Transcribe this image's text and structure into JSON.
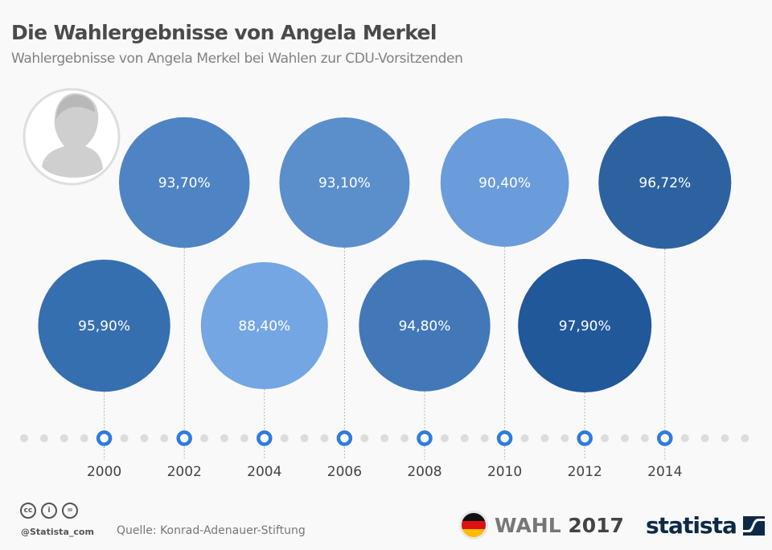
{
  "header": {
    "title": "Die Wahlergebnisse von Angela Merkel",
    "subtitle": "Wahlergebnisse von Angela Merkel bei Wahlen zur CDU-Vorsitzenden"
  },
  "portrait": {
    "icon": "angela-merkel-portrait",
    "color": "#cfcfcf"
  },
  "colors": {
    "ring": "#2e7be0",
    "dot": "#dcdcdc",
    "connector": "#b5b5b5"
  },
  "chart_data": {
    "type": "bubble-timeline",
    "title": "Die Wahlergebnisse von Angela Merkel",
    "subtitle": "Wahlergebnisse von Angela Merkel bei Wahlen zur CDU-Vorsitzenden",
    "xlabel": "",
    "ylabel": "",
    "categories": [
      "2000",
      "2002",
      "2004",
      "2006",
      "2008",
      "2010",
      "2012",
      "2014"
    ],
    "values": [
      95.9,
      93.7,
      88.4,
      93.1,
      94.8,
      90.4,
      97.9,
      96.72
    ],
    "labels": [
      "95,90%",
      "93,70%",
      "88,40%",
      "93,10%",
      "94,80%",
      "90,40%",
      "97,90%",
      "96,72%"
    ],
    "rows": [
      "bottom",
      "top",
      "bottom",
      "top",
      "bottom",
      "top",
      "bottom",
      "top"
    ],
    "colors": [
      "#366faf",
      "#4f84c4",
      "#73a6e2",
      "#5b8fcc",
      "#4278b8",
      "#6a9cdb",
      "#21589a",
      "#2d62a0"
    ],
    "unit": "%",
    "value_range": [
      88.4,
      97.9
    ],
    "grid": false,
    "legend": "none"
  },
  "footer": {
    "handle": "@Statista_com",
    "source": "Quelle: Konrad-Adenauer-Stiftung",
    "license_icons": [
      "cc-icon",
      "by-icon",
      "nd-icon"
    ],
    "license_glyphs": [
      "cc",
      "i",
      "="
    ],
    "wahl_label": "WAHL",
    "wahl_year": "2017",
    "brand": "statista"
  }
}
